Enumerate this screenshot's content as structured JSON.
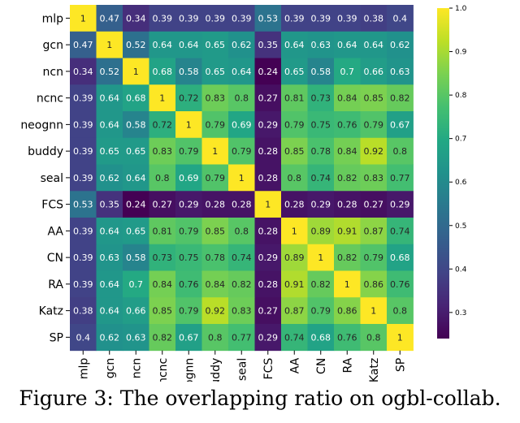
{
  "figure": {
    "caption": "Figure 3: The overlapping ratio on ogbl-collab."
  },
  "chart_data": {
    "type": "heatmap",
    "title": "",
    "xlabel": "",
    "ylabel": "",
    "labels": [
      "mlp",
      "gcn",
      "ncn",
      "ncnc",
      "neognn",
      "buddy",
      "seal",
      "FCS",
      "AA",
      "CN",
      "RA",
      "Katz",
      "SP"
    ],
    "matrix": [
      [
        1,
        0.47,
        0.34,
        0.39,
        0.39,
        0.39,
        0.39,
        0.53,
        0.39,
        0.39,
        0.39,
        0.38,
        0.4
      ],
      [
        0.47,
        1,
        0.52,
        0.64,
        0.64,
        0.65,
        0.62,
        0.35,
        0.64,
        0.63,
        0.64,
        0.64,
        0.62
      ],
      [
        0.34,
        0.52,
        1,
        0.68,
        0.58,
        0.65,
        0.64,
        0.24,
        0.65,
        0.58,
        0.7,
        0.66,
        0.63
      ],
      [
        0.39,
        0.64,
        0.68,
        1,
        0.72,
        0.83,
        0.8,
        0.27,
        0.81,
        0.73,
        0.84,
        0.85,
        0.82
      ],
      [
        0.39,
        0.64,
        0.58,
        0.72,
        1,
        0.79,
        0.69,
        0.29,
        0.79,
        0.75,
        0.76,
        0.79,
        0.67
      ],
      [
        0.39,
        0.65,
        0.65,
        0.83,
        0.79,
        1,
        0.79,
        0.28,
        0.85,
        0.78,
        0.84,
        0.92,
        0.8
      ],
      [
        0.39,
        0.62,
        0.64,
        0.8,
        0.69,
        0.79,
        1,
        0.28,
        0.8,
        0.74,
        0.82,
        0.83,
        0.77
      ],
      [
        0.53,
        0.35,
        0.24,
        0.27,
        0.29,
        0.28,
        0.28,
        1,
        0.28,
        0.29,
        0.28,
        0.27,
        0.29
      ],
      [
        0.39,
        0.64,
        0.65,
        0.81,
        0.79,
        0.85,
        0.8,
        0.28,
        1,
        0.89,
        0.91,
        0.87,
        0.74
      ],
      [
        0.39,
        0.63,
        0.58,
        0.73,
        0.75,
        0.78,
        0.74,
        0.29,
        0.89,
        1,
        0.82,
        0.79,
        0.68
      ],
      [
        0.39,
        0.64,
        0.7,
        0.84,
        0.76,
        0.84,
        0.82,
        0.28,
        0.91,
        0.82,
        1,
        0.86,
        0.76
      ],
      [
        0.38,
        0.64,
        0.66,
        0.85,
        0.79,
        0.92,
        0.83,
        0.27,
        0.87,
        0.79,
        0.86,
        1,
        0.8
      ],
      [
        0.4,
        0.62,
        0.63,
        0.82,
        0.67,
        0.8,
        0.77,
        0.29,
        0.74,
        0.68,
        0.76,
        0.8,
        1
      ]
    ],
    "colormap": "viridis",
    "vmin": 0.24,
    "vmax": 1.0,
    "colorbar": {
      "ticks": [
        0.3,
        0.4,
        0.5,
        0.6,
        0.7,
        0.8,
        0.9,
        1.0
      ],
      "tick_labels": [
        "0.3",
        "0.4",
        "0.5",
        "0.6",
        "0.7",
        "0.8",
        "0.9",
        "1.0"
      ],
      "position": "right"
    },
    "annotations": true,
    "grid": false
  }
}
